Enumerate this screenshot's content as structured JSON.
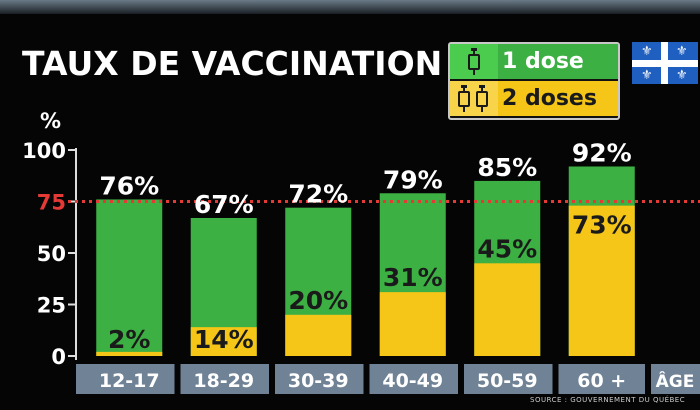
{
  "title": "TAUX DE VACCINATION",
  "legend": {
    "one_dose": "1 dose",
    "two_doses": "2 doses",
    "one_icon": "syringe-icon",
    "two_icon": "two-syringes-icon"
  },
  "flag_icon": "quebec-flag-icon",
  "source": "SOURCE : GOUVERNEMENT DU QUÉBEC",
  "colors": {
    "one_dose": "#3cb043",
    "two_doses": "#f5c518",
    "target_line": "#e53935",
    "axis_band": "#6f8296"
  },
  "chart_data": {
    "type": "bar",
    "ylabel": "%",
    "xlabel": "ÂGE",
    "ylim": [
      0,
      100
    ],
    "yticks": [
      0,
      25,
      50,
      75,
      100
    ],
    "target_value": 75,
    "target_label": "75",
    "categories": [
      "12-17",
      "18-29",
      "30-39",
      "40-49",
      "50-59",
      "60 +"
    ],
    "series": [
      {
        "name": "1 dose",
        "values": [
          76,
          67,
          72,
          79,
          85,
          92
        ]
      },
      {
        "name": "2 doses",
        "values": [
          2,
          14,
          20,
          31,
          45,
          73
        ]
      }
    ],
    "labels_one": [
      "76%",
      "67%",
      "72%",
      "79%",
      "85%",
      "92%"
    ],
    "labels_two": [
      "2%",
      "14%",
      "20%",
      "31%",
      "45%",
      "73%"
    ]
  }
}
